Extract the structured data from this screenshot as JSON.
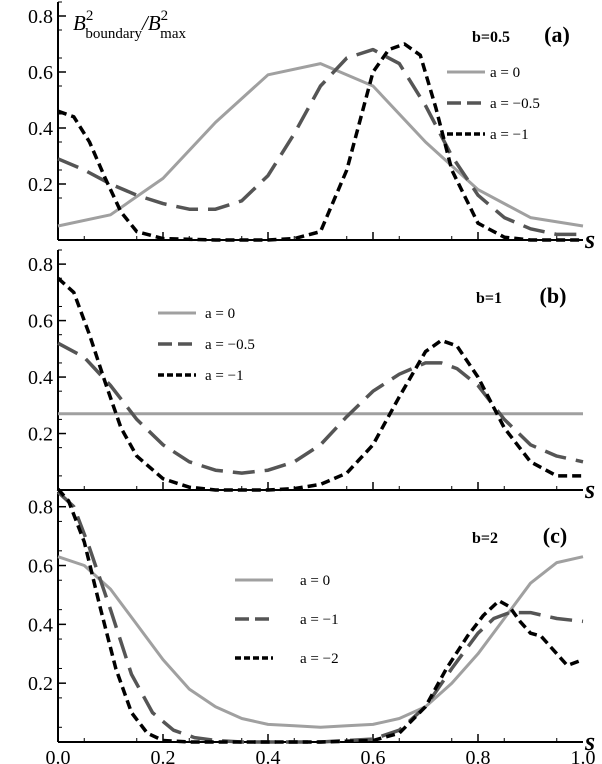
{
  "ylabel": {
    "main": "B",
    "sub1": "boundary",
    "sup1": "2",
    "sep": "/",
    "sub2": "max",
    "sup2": "2"
  },
  "xlabel": "s",
  "chart_data": [
    {
      "type": "line",
      "panel_letter": "(a)",
      "param_label": "b=0.5",
      "xlim": [
        0,
        1
      ],
      "ylim": [
        0,
        0.85
      ],
      "yticks": [
        "0.2",
        "0.4",
        "0.6",
        "0.8"
      ],
      "yticks_values": [
        0.2,
        0.4,
        0.6,
        0.8
      ],
      "series": [
        {
          "name": "a = 0",
          "style": "solid",
          "color": "#a0a0a0",
          "x": [
            0,
            0.1,
            0.2,
            0.3,
            0.4,
            0.5,
            0.6,
            0.7,
            0.8,
            0.9,
            1.0
          ],
          "y": [
            0.05,
            0.09,
            0.22,
            0.42,
            0.59,
            0.63,
            0.55,
            0.35,
            0.18,
            0.08,
            0.05
          ]
        },
        {
          "name": "a = −0.5",
          "style": "longdash",
          "color": "#555555",
          "x": [
            0,
            0.05,
            0.1,
            0.15,
            0.2,
            0.25,
            0.3,
            0.35,
            0.4,
            0.45,
            0.5,
            0.55,
            0.6,
            0.65,
            0.7,
            0.75,
            0.8,
            0.85,
            0.9,
            0.95,
            1.0
          ],
          "y": [
            0.29,
            0.25,
            0.2,
            0.16,
            0.13,
            0.11,
            0.11,
            0.14,
            0.23,
            0.38,
            0.55,
            0.65,
            0.68,
            0.63,
            0.48,
            0.3,
            0.16,
            0.08,
            0.04,
            0.02,
            0.02
          ]
        },
        {
          "name": "a = −1",
          "style": "shortdash",
          "color": "#000000",
          "x": [
            0,
            0.03,
            0.06,
            0.09,
            0.12,
            0.15,
            0.2,
            0.3,
            0.4,
            0.45,
            0.5,
            0.55,
            0.6,
            0.63,
            0.66,
            0.69,
            0.72,
            0.75,
            0.8,
            0.85,
            0.9,
            1.0
          ],
          "y": [
            0.46,
            0.44,
            0.35,
            0.22,
            0.1,
            0.03,
            0.005,
            0.0,
            0.0,
            0.005,
            0.03,
            0.25,
            0.6,
            0.68,
            0.7,
            0.66,
            0.47,
            0.25,
            0.06,
            0.01,
            0.0,
            0.0
          ]
        }
      ]
    },
    {
      "type": "line",
      "panel_letter": "(b)",
      "param_label": "b=1",
      "xlim": [
        0,
        1
      ],
      "ylim": [
        0,
        0.85
      ],
      "yticks": [
        "0.2",
        "0.4",
        "0.6",
        "0.8"
      ],
      "yticks_values": [
        0.2,
        0.4,
        0.6,
        0.8
      ],
      "series": [
        {
          "name": "a = 0",
          "style": "solid",
          "color": "#a0a0a0",
          "x": [
            0,
            1.0
          ],
          "y": [
            0.27,
            0.27
          ]
        },
        {
          "name": "a = −0.5",
          "style": "longdash",
          "color": "#555555",
          "x": [
            0,
            0.05,
            0.1,
            0.15,
            0.2,
            0.25,
            0.3,
            0.35,
            0.4,
            0.45,
            0.5,
            0.55,
            0.6,
            0.65,
            0.7,
            0.73,
            0.76,
            0.8,
            0.85,
            0.9,
            0.95,
            1.0
          ],
          "y": [
            0.52,
            0.47,
            0.37,
            0.25,
            0.16,
            0.1,
            0.07,
            0.06,
            0.07,
            0.1,
            0.16,
            0.26,
            0.35,
            0.41,
            0.45,
            0.45,
            0.43,
            0.37,
            0.25,
            0.16,
            0.12,
            0.1
          ]
        },
        {
          "name": "a = −1",
          "style": "shortdash",
          "color": "#000000",
          "x": [
            0,
            0.03,
            0.06,
            0.09,
            0.12,
            0.15,
            0.2,
            0.25,
            0.3,
            0.35,
            0.4,
            0.45,
            0.5,
            0.55,
            0.6,
            0.65,
            0.7,
            0.73,
            0.76,
            0.8,
            0.85,
            0.9,
            0.95,
            1.0
          ],
          "y": [
            0.75,
            0.7,
            0.55,
            0.38,
            0.22,
            0.12,
            0.04,
            0.01,
            0.0,
            0.0,
            0.0,
            0.005,
            0.02,
            0.06,
            0.16,
            0.33,
            0.49,
            0.53,
            0.51,
            0.4,
            0.22,
            0.1,
            0.05,
            0.05
          ]
        }
      ]
    },
    {
      "type": "line",
      "panel_letter": "(c)",
      "param_label": "b=2",
      "xlim": [
        0,
        1
      ],
      "ylim": [
        0,
        0.85
      ],
      "xticks": [
        "0.0",
        "0.2",
        "0.4",
        "0.6",
        "0.8",
        "1.0"
      ],
      "xticks_values": [
        0,
        0.2,
        0.4,
        0.6,
        0.8,
        1.0
      ],
      "yticks": [
        "0.2",
        "0.4",
        "0.6",
        "0.8"
      ],
      "yticks_values": [
        0.2,
        0.4,
        0.6,
        0.8
      ],
      "series": [
        {
          "name": "a = 0",
          "style": "solid",
          "color": "#a0a0a0",
          "x": [
            0,
            0.05,
            0.1,
            0.15,
            0.2,
            0.25,
            0.3,
            0.35,
            0.4,
            0.45,
            0.5,
            0.55,
            0.6,
            0.65,
            0.7,
            0.75,
            0.8,
            0.85,
            0.9,
            0.95,
            1.0
          ],
          "y": [
            0.63,
            0.6,
            0.52,
            0.4,
            0.28,
            0.18,
            0.12,
            0.08,
            0.06,
            0.055,
            0.05,
            0.055,
            0.06,
            0.08,
            0.12,
            0.2,
            0.3,
            0.42,
            0.54,
            0.61,
            0.63
          ]
        },
        {
          "name": "a = −1",
          "style": "longdash",
          "color": "#555555",
          "x": [
            0,
            0.03,
            0.06,
            0.1,
            0.14,
            0.18,
            0.22,
            0.26,
            0.3,
            0.35,
            0.4,
            0.5,
            0.6,
            0.65,
            0.7,
            0.75,
            0.8,
            0.83,
            0.86,
            0.9,
            0.95,
            1.0
          ],
          "y": [
            0.85,
            0.8,
            0.66,
            0.45,
            0.23,
            0.1,
            0.04,
            0.015,
            0.005,
            0.0,
            0.0,
            0.0,
            0.01,
            0.04,
            0.12,
            0.25,
            0.37,
            0.42,
            0.44,
            0.44,
            0.42,
            0.41
          ]
        },
        {
          "name": "a = −2",
          "style": "shortdash",
          "color": "#000000",
          "x": [
            0,
            0.02,
            0.05,
            0.08,
            0.11,
            0.14,
            0.17,
            0.2,
            0.25,
            0.3,
            0.4,
            0.5,
            0.6,
            0.65,
            0.7,
            0.74,
            0.78,
            0.81,
            0.84,
            0.86,
            0.88,
            0.9,
            0.92,
            0.95,
            0.97,
            1.0
          ],
          "y": [
            0.86,
            0.82,
            0.68,
            0.46,
            0.25,
            0.1,
            0.03,
            0.005,
            0.0,
            0.0,
            0.0,
            0.0,
            0.005,
            0.03,
            0.12,
            0.25,
            0.36,
            0.43,
            0.48,
            0.46,
            0.41,
            0.37,
            0.36,
            0.3,
            0.26,
            0.28
          ]
        }
      ]
    }
  ]
}
